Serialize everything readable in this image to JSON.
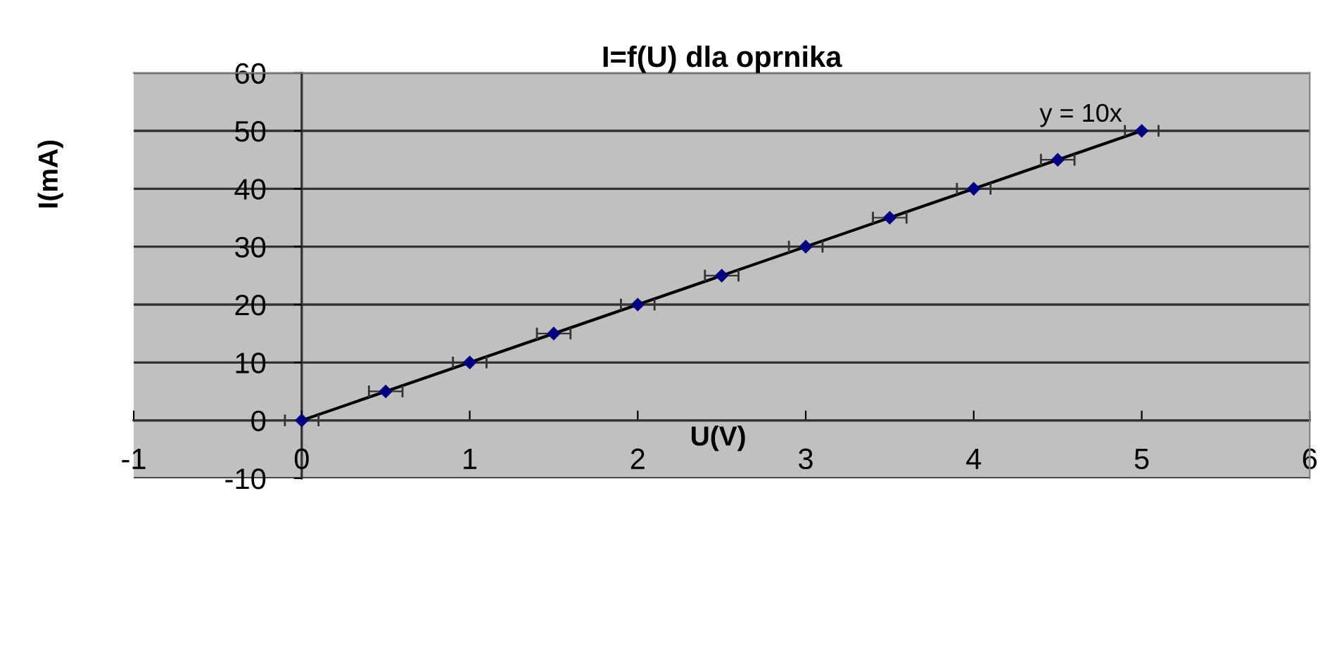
{
  "chart_data": {
    "type": "scatter",
    "title": "I=f(U) dla oprnika",
    "xlabel": "U(V)",
    "ylabel": "I(mA)",
    "xlim": [
      -1,
      6
    ],
    "xticks": [
      -1,
      0,
      1,
      2,
      3,
      4,
      5,
      6
    ],
    "ylim": [
      -10,
      60
    ],
    "yticks": [
      -10,
      0,
      10,
      20,
      30,
      40,
      50,
      60
    ],
    "grid": "y",
    "marker": "diamond",
    "legend": false,
    "series": [
      {
        "color": "#000080",
        "x": [
          0,
          0.5,
          1,
          1.5,
          2,
          2.5,
          3,
          3.5,
          4,
          4.5,
          5
        ],
        "values": [
          0,
          5,
          10,
          15,
          20,
          25,
          30,
          35,
          40,
          45,
          50
        ],
        "xerrors": [
          0.1,
          0.1,
          0.1,
          0.1,
          0.1,
          0.1,
          0.1,
          0.1,
          0.1,
          0.1,
          0.1
        ]
      },
      {
        "type": "line",
        "marker": "none",
        "color": "#000000",
        "x": [
          0,
          5
        ],
        "values": [
          0,
          50
        ]
      }
    ],
    "annotations": [
      {
        "text": "y = 10x",
        "x": 5,
        "y": 50
      }
    ]
  }
}
